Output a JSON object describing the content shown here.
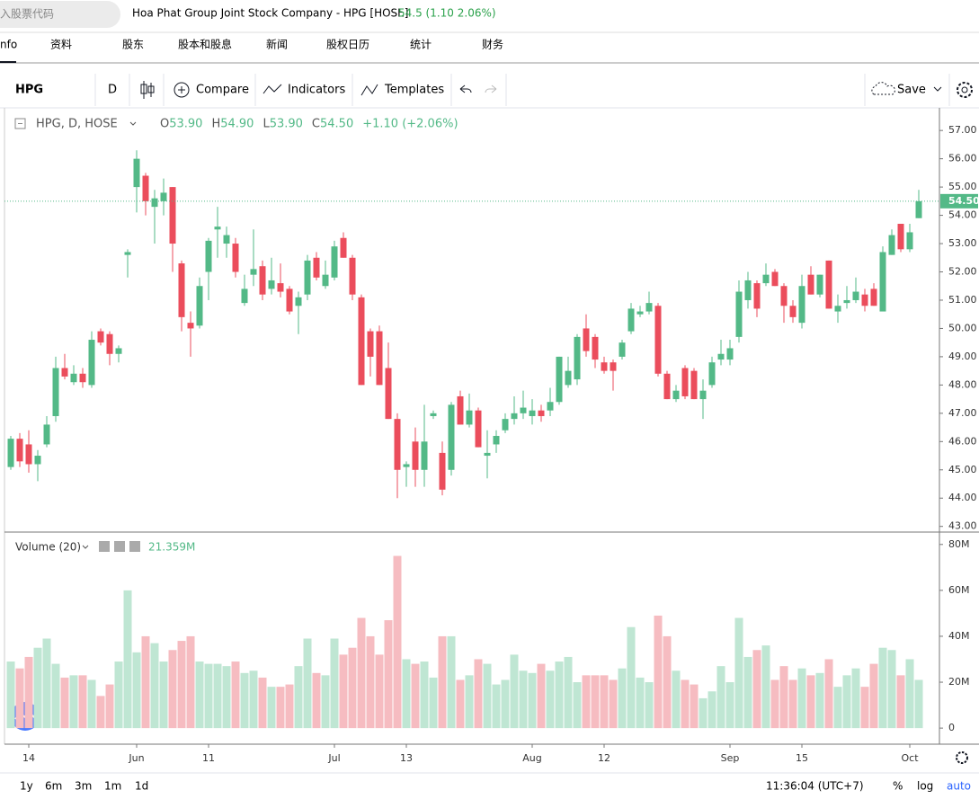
{
  "header": {
    "search_placeholder": "入股票代码",
    "title": "Hoa Phat Group Joint Stock Company - HPG [HOSE]",
    "price": "54.5 (1.10 2.06%)"
  },
  "tabs": [
    "nfo",
    "资料",
    "股东",
    "股本和股息",
    "新闻",
    "股权日历",
    "统计",
    "财务"
  ],
  "toolbar": {
    "symbol": "HPG",
    "interval": "D",
    "compare": "Compare",
    "indicators": "Indicators",
    "templates": "Templates",
    "save": "Save"
  },
  "footer": {
    "ranges": [
      "1y",
      "6m",
      "3m",
      "1m",
      "1d"
    ],
    "time": "11:36:04 (UTC+7)",
    "percent": "%",
    "log": "log",
    "auto": "auto"
  },
  "chart_data": [
    {
      "type": "candlestick",
      "legend": {
        "symbol": "HPG, D, HOSE",
        "items": [
          {
            "label": "O",
            "value": "53.90"
          },
          {
            "label": "H",
            "value": "54.90"
          },
          {
            "label": "L",
            "value": "53.90"
          },
          {
            "label": "C",
            "value": "54.50"
          }
        ],
        "change": "+1.10 (+2.06%)"
      },
      "open": [
        45.1,
        46.1,
        45.9,
        45.2,
        45.9,
        46.9,
        48.6,
        48.1,
        48.4,
        48.0,
        49.9,
        49.8,
        49.1,
        52.6,
        55.0,
        55.4,
        54.3,
        54.5,
        55.0,
        52.3,
        50.2,
        50.1,
        52.0,
        53.5,
        53.0,
        53.0,
        50.9,
        51.9,
        52.2,
        51.4,
        51.6,
        51.4,
        50.8,
        51.2,
        52.5,
        51.5,
        51.8,
        53.2,
        52.5,
        51.1,
        49.9,
        49.9,
        48.6,
        46.8,
        45.1,
        46.0,
        45.0,
        46.9,
        45.6,
        45.0,
        47.6,
        46.6,
        47.1,
        45.5,
        45.9,
        46.4,
        46.8,
        47.0,
        46.9,
        47.1,
        47.1,
        47.4,
        48.0,
        48.2,
        50.0,
        49.7,
        48.8,
        48.8,
        49.0,
        49.9,
        50.5,
        50.6,
        50.8,
        48.4,
        47.5,
        48.6,
        48.5,
        47.5,
        48.0,
        48.9,
        48.9,
        49.7,
        51.0,
        51.6,
        51.6,
        52.0,
        51.5,
        50.8,
        50.2,
        51.9,
        51.2,
        52.4,
        50.6,
        50.9,
        51.0,
        51.2,
        51.4,
        50.6,
        52.6,
        53.7,
        52.8,
        53.9
      ],
      "high": [
        46.2,
        46.3,
        46.4,
        45.7,
        46.9,
        49.0,
        49.1,
        48.7,
        48.6,
        49.9,
        50.0,
        49.9,
        49.4,
        52.8,
        56.3,
        55.5,
        54.9,
        55.3,
        55.0,
        52.4,
        50.6,
        51.8,
        53.2,
        54.3,
        53.6,
        53.2,
        51.9,
        53.5,
        52.4,
        52.5,
        52.3,
        51.5,
        51.3,
        52.6,
        52.7,
        52.4,
        53.1,
        53.4,
        52.6,
        51.2,
        50.0,
        50.1,
        49.5,
        47.0,
        45.3,
        46.5,
        47.3,
        47.1,
        46.0,
        47.4,
        47.8,
        47.7,
        47.2,
        46.4,
        46.4,
        47.0,
        47.6,
        47.8,
        47.5,
        47.3,
        47.9,
        49.0,
        49.0,
        49.8,
        50.5,
        49.8,
        49.0,
        48.9,
        49.6,
        50.9,
        50.8,
        51.3,
        50.9,
        48.5,
        48.0,
        48.7,
        48.6,
        48.2,
        49.0,
        49.6,
        49.6,
        51.7,
        52.0,
        51.7,
        52.3,
        52.1,
        51.6,
        51.0,
        51.9,
        52.2,
        51.9,
        52.4,
        51.2,
        51.5,
        51.8,
        51.4,
        51.6,
        52.9,
        53.5,
        53.7,
        53.7,
        54.9
      ],
      "low": [
        45.0,
        45.1,
        44.9,
        44.6,
        45.8,
        46.7,
        48.2,
        48.0,
        47.9,
        47.9,
        49.4,
        48.7,
        48.8,
        51.8,
        54.1,
        54.0,
        53.0,
        54.0,
        52.0,
        49.9,
        49.0,
        50.0,
        51.0,
        52.5,
        52.5,
        51.8,
        50.8,
        51.5,
        51.0,
        51.2,
        51.1,
        50.5,
        49.8,
        51.0,
        51.7,
        51.4,
        51.7,
        52.5,
        51.0,
        48.0,
        48.3,
        48.0,
        46.8,
        44.0,
        44.4,
        44.4,
        44.4,
        46.8,
        44.1,
        44.8,
        46.6,
        46.5,
        45.8,
        44.7,
        45.6,
        46.3,
        46.6,
        46.8,
        46.6,
        46.7,
        46.9,
        47.3,
        47.9,
        48.0,
        49.0,
        48.6,
        48.4,
        47.8,
        48.9,
        49.8,
        50.4,
        50.5,
        48.3,
        47.5,
        47.4,
        47.5,
        47.5,
        46.8,
        47.9,
        48.7,
        48.7,
        49.5,
        50.7,
        50.4,
        51.5,
        51.5,
        50.2,
        50.2,
        50.0,
        51.2,
        51.1,
        50.7,
        50.2,
        50.7,
        50.9,
        50.6,
        50.8,
        50.6,
        52.6,
        52.7,
        52.7,
        53.9
      ],
      "close": [
        46.1,
        45.3,
        45.2,
        45.5,
        46.6,
        48.6,
        48.3,
        48.4,
        48.1,
        49.6,
        49.5,
        49.1,
        49.3,
        52.7,
        56.0,
        54.5,
        54.6,
        54.8,
        53.0,
        50.4,
        50.0,
        51.5,
        53.1,
        53.6,
        53.3,
        52.0,
        51.4,
        52.1,
        51.2,
        51.7,
        51.3,
        50.6,
        51.1,
        52.4,
        51.8,
        51.9,
        52.9,
        52.5,
        51.2,
        48.0,
        49.0,
        48.0,
        46.8,
        45.0,
        45.2,
        45.0,
        46.0,
        47.0,
        44.3,
        47.3,
        46.6,
        47.1,
        45.8,
        45.6,
        46.2,
        46.8,
        47.0,
        47.2,
        47.1,
        46.9,
        47.4,
        49.0,
        48.5,
        49.7,
        49.2,
        48.9,
        48.5,
        48.5,
        49.5,
        50.7,
        50.6,
        50.9,
        48.4,
        47.5,
        47.8,
        47.6,
        47.5,
        47.8,
        48.8,
        49.1,
        49.3,
        51.3,
        51.7,
        50.7,
        51.9,
        51.5,
        50.8,
        50.4,
        51.5,
        51.2,
        51.9,
        50.7,
        50.8,
        51.0,
        51.3,
        50.8,
        50.8,
        52.7,
        53.3,
        52.8,
        53.4,
        54.5
      ],
      "up_color": "#53b987",
      "down_color": "#eb4d5c",
      "xlim": [
        -0.7,
        103.3
      ],
      "ylim": [
        42.8,
        57.8
      ],
      "yticks": [
        {
          "value": 43,
          "label": "43.00"
        },
        {
          "value": 44,
          "label": "44.00"
        },
        {
          "value": 45,
          "label": "45.00"
        },
        {
          "value": 46,
          "label": "46.00"
        },
        {
          "value": 47,
          "label": "47.00"
        },
        {
          "value": 48,
          "label": "48.00"
        },
        {
          "value": 49,
          "label": "49.00"
        },
        {
          "value": 50,
          "label": "50.00"
        },
        {
          "value": 51,
          "label": "51.00"
        },
        {
          "value": 52,
          "label": "52.00"
        },
        {
          "value": 53,
          "label": "53.00"
        },
        {
          "value": 54,
          "label": "54.00"
        },
        {
          "value": 55,
          "label": "55.00"
        },
        {
          "value": 56,
          "label": "56.00"
        },
        {
          "value": 57,
          "label": "57.00"
        }
      ],
      "last_price": {
        "value": 54.5,
        "label": "54.50"
      }
    },
    {
      "type": "bar",
      "legend": {
        "name": "Volume (20)",
        "value": "21.359M"
      },
      "values": [
        29,
        26,
        31,
        35,
        39,
        28,
        22,
        23,
        23,
        21,
        14,
        19,
        29,
        60,
        33,
        40,
        37,
        29,
        34,
        38,
        40,
        29,
        28,
        28,
        27,
        29,
        24,
        25,
        22,
        18,
        18,
        19,
        27,
        39,
        24,
        23,
        39,
        32,
        35,
        48,
        40,
        32,
        47,
        75,
        30,
        28,
        29,
        22,
        40,
        40,
        21,
        23,
        30,
        28,
        19,
        21,
        32,
        25,
        24,
        28,
        25,
        29,
        31,
        20,
        23,
        23,
        23,
        21,
        26,
        44,
        22,
        20,
        49,
        40,
        25,
        21,
        19,
        13,
        16,
        27,
        20,
        48,
        31,
        34,
        36,
        21,
        27,
        21,
        26,
        23,
        24,
        30,
        18,
        23,
        26,
        18,
        28,
        35,
        34,
        23,
        30,
        21
      ],
      "up_color": "#bfe6d3",
      "down_color": "#f6bcc1",
      "xlim": [
        -0.7,
        103.3
      ],
      "ylim": [
        -7,
        85
      ],
      "yticks": [
        0,
        {
          "value": 20,
          "label": "20M"
        },
        {
          "value": 40,
          "label": "40M"
        },
        {
          "value": 60,
          "label": "60M"
        },
        {
          "value": 80,
          "label": "80M"
        }
      ],
      "xticks": [
        {
          "value": 2,
          "label": "14"
        },
        {
          "value": 14,
          "label": "Jun"
        },
        {
          "value": 22,
          "label": "11"
        },
        {
          "value": 36,
          "label": "Jul"
        },
        {
          "value": 44,
          "label": "13"
        },
        {
          "value": 58,
          "label": "Aug"
        },
        {
          "value": 66,
          "label": "12"
        },
        {
          "value": 80,
          "label": "Sep"
        },
        {
          "value": 88,
          "label": "15"
        },
        {
          "value": 100,
          "label": "Oct"
        }
      ]
    }
  ]
}
